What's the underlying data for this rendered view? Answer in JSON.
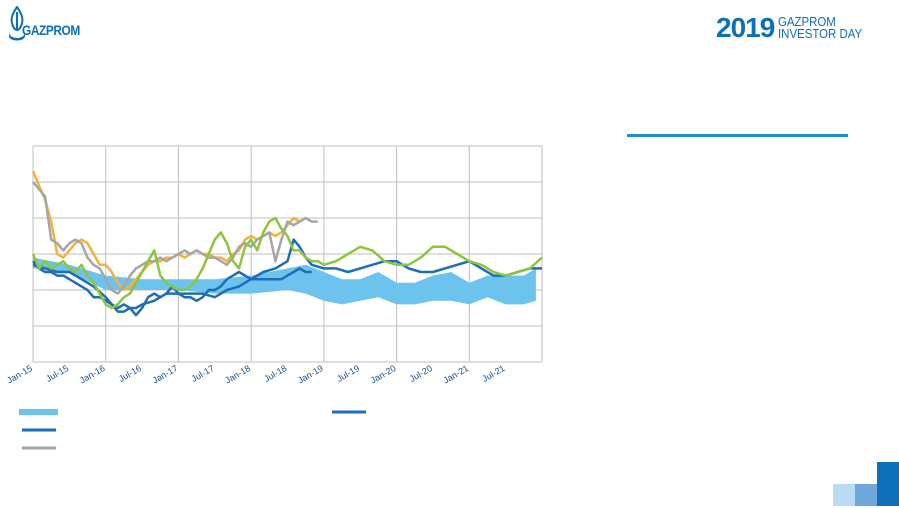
{
  "header": {
    "logo_text": "GAZPROM",
    "event_year": "2019",
    "event_line1": "GAZPROM",
    "event_line2": "INVESTOR DAY"
  },
  "colors": {
    "brand": "#0d6fb8",
    "band": "#6cc3ee",
    "accent_rule": "#1e8fd6",
    "series_orange": "#f2b33d",
    "series_grey": "#a6a6a6",
    "series_green": "#8cc63f",
    "series_dark_blue": "#1e6db8",
    "grid": "#bfbfbf"
  },
  "chart_data": {
    "type": "line",
    "title": "",
    "xlabel": "",
    "ylabel": "",
    "x_tick_labels": [
      "Jan-15",
      "Jul-15",
      "Jan-16",
      "Jul-16",
      "Jan-17",
      "Jul-17",
      "Jan-18",
      "Jul-18",
      "Jan-19",
      "Jul-19",
      "Jan-20",
      "Jul-20",
      "Jan-21",
      "Jul-21"
    ],
    "x_range_months": [
      0,
      84
    ],
    "y_range": [
      0,
      6
    ],
    "grid": true,
    "band": {
      "legend_marker": "band",
      "x": [
        0,
        6,
        12,
        18,
        24,
        30,
        36,
        42,
        45,
        48,
        51,
        54,
        57,
        60,
        63,
        66,
        69,
        72,
        75,
        78,
        81,
        83
      ],
      "low": [
        2.6,
        2.5,
        2.0,
        2.0,
        2.0,
        1.9,
        1.9,
        2.0,
        1.9,
        1.7,
        1.6,
        1.7,
        1.8,
        1.6,
        1.6,
        1.7,
        1.7,
        1.6,
        1.8,
        1.6,
        1.6,
        1.7
      ],
      "high": [
        2.9,
        2.7,
        2.4,
        2.3,
        2.3,
        2.3,
        2.4,
        2.6,
        2.7,
        2.5,
        2.3,
        2.3,
        2.5,
        2.2,
        2.2,
        2.4,
        2.5,
        2.2,
        2.4,
        2.4,
        2.4,
        2.6
      ]
    },
    "series": [
      {
        "legend_marker": "orange",
        "x": [
          0,
          1,
          2,
          3,
          4,
          5,
          6,
          7,
          8,
          9,
          10,
          11,
          12,
          13,
          14,
          15,
          16,
          17,
          18,
          19,
          20,
          21,
          22,
          23,
          24,
          25,
          26,
          27,
          28,
          29,
          30,
          31,
          32,
          33,
          34,
          35,
          36,
          37,
          38,
          39,
          40,
          41,
          42,
          43,
          44,
          45,
          46
        ],
        "y": [
          5.3,
          4.9,
          4.5,
          3.9,
          3.0,
          2.9,
          3.1,
          3.3,
          3.4,
          3.3,
          3.0,
          2.7,
          2.7,
          2.5,
          2.2,
          2.0,
          2.1,
          2.3,
          2.5,
          2.7,
          2.8,
          2.8,
          2.9,
          2.9,
          3.0,
          2.9,
          3.0,
          3.1,
          3.0,
          3.0,
          2.9,
          2.9,
          2.8,
          3.0,
          3.1,
          3.4,
          3.5,
          3.4,
          3.5,
          3.6,
          3.5,
          3.6,
          3.8,
          4.0,
          3.9,
          4.0,
          3.9
        ]
      },
      {
        "legend_marker": "grey",
        "x": [
          0,
          1,
          2,
          3,
          4,
          5,
          6,
          7,
          8,
          9,
          10,
          11,
          12,
          13,
          14,
          15,
          16,
          17,
          18,
          19,
          20,
          21,
          22,
          23,
          24,
          25,
          26,
          27,
          28,
          29,
          30,
          31,
          32,
          33,
          34,
          35,
          36,
          37,
          38,
          39,
          40,
          41,
          42,
          43,
          44,
          45,
          46,
          47
        ],
        "y": [
          5.0,
          4.8,
          4.6,
          3.4,
          3.3,
          3.1,
          3.3,
          3.4,
          3.3,
          2.9,
          2.7,
          2.6,
          2.3,
          2.0,
          1.9,
          2.1,
          2.4,
          2.6,
          2.7,
          2.8,
          2.8,
          2.9,
          2.8,
          2.9,
          3.0,
          3.1,
          3.0,
          3.1,
          3.0,
          2.9,
          2.9,
          2.8,
          2.7,
          2.9,
          3.2,
          3.3,
          3.2,
          3.4,
          3.5,
          3.6,
          2.8,
          3.4,
          3.9,
          3.8,
          3.9,
          4.0,
          3.9,
          3.9
        ]
      },
      {
        "legend_marker": "dark-blue",
        "x": [
          0,
          1,
          2,
          3,
          4,
          5,
          6,
          7,
          8,
          9,
          10,
          11,
          12,
          13,
          14,
          15,
          16,
          17,
          18,
          19,
          20,
          21,
          22,
          23,
          24,
          25,
          26,
          27,
          28,
          29,
          30,
          31,
          32,
          33,
          34,
          35,
          36,
          37,
          38,
          39,
          40,
          41,
          42,
          43,
          44,
          45,
          46
        ],
        "y": [
          2.8,
          2.6,
          2.5,
          2.5,
          2.4,
          2.4,
          2.3,
          2.2,
          2.1,
          2.0,
          1.8,
          1.8,
          1.7,
          1.6,
          1.5,
          1.6,
          1.5,
          1.3,
          1.5,
          1.8,
          1.9,
          1.8,
          1.9,
          2.1,
          1.9,
          1.8,
          1.8,
          1.7,
          1.8,
          2.0,
          2.0,
          2.1,
          2.3,
          2.4,
          2.5,
          2.4,
          2.3,
          2.3,
          2.3,
          2.3,
          2.3,
          2.3,
          2.4,
          2.5,
          2.6,
          2.5,
          2.5
        ]
      },
      {
        "legend_marker": "dark-blue-alt",
        "x": [
          0,
          2,
          4,
          6,
          8,
          10,
          12,
          13,
          14,
          15,
          16,
          17,
          18,
          20,
          22,
          24,
          26,
          28,
          30,
          32,
          34,
          36,
          38,
          40,
          42,
          43,
          44,
          45,
          46,
          48,
          50,
          52,
          54,
          56,
          58,
          60,
          62,
          64,
          66,
          68,
          70,
          72,
          74,
          76,
          78,
          80,
          82,
          84
        ],
        "y": [
          2.7,
          2.6,
          2.5,
          2.5,
          2.3,
          2.1,
          1.8,
          1.6,
          1.4,
          1.4,
          1.5,
          1.5,
          1.6,
          1.7,
          1.9,
          1.9,
          1.9,
          1.9,
          1.8,
          2.0,
          2.1,
          2.3,
          2.5,
          2.6,
          2.8,
          3.4,
          3.2,
          2.9,
          2.7,
          2.6,
          2.6,
          2.5,
          2.6,
          2.7,
          2.8,
          2.8,
          2.6,
          2.5,
          2.5,
          2.6,
          2.7,
          2.8,
          2.6,
          2.4,
          2.4,
          2.5,
          2.6,
          2.6
        ]
      },
      {
        "legend_marker": "green",
        "x": [
          0,
          1,
          2,
          3,
          4,
          5,
          6,
          7,
          8,
          9,
          10,
          11,
          12,
          13,
          14,
          15,
          16,
          17,
          18,
          19,
          20,
          21,
          22,
          23,
          24,
          25,
          26,
          27,
          28,
          29,
          30,
          31,
          32,
          33,
          34,
          35,
          36,
          37,
          38,
          39,
          40,
          41,
          42,
          43,
          44,
          45,
          46,
          47,
          48,
          50,
          52,
          54,
          56,
          58,
          60,
          62,
          64,
          66,
          68,
          70,
          72,
          74,
          76,
          78,
          80,
          82,
          84
        ],
        "y": [
          3.0,
          2.6,
          2.8,
          2.6,
          2.7,
          2.8,
          2.6,
          2.5,
          2.7,
          2.4,
          2.2,
          1.9,
          1.6,
          1.5,
          1.6,
          1.8,
          1.9,
          2.2,
          2.5,
          2.8,
          3.1,
          2.4,
          2.2,
          2.1,
          2.0,
          2.0,
          2.1,
          2.3,
          2.6,
          3.0,
          3.4,
          3.6,
          3.3,
          2.8,
          2.6,
          3.2,
          3.4,
          3.1,
          3.6,
          3.9,
          4.0,
          3.7,
          3.5,
          3.1,
          3.1,
          2.9,
          2.8,
          2.8,
          2.7,
          2.8,
          3.0,
          3.2,
          3.1,
          2.8,
          2.7,
          2.7,
          2.9,
          3.2,
          3.2,
          3.0,
          2.8,
          2.7,
          2.5,
          2.4,
          2.5,
          2.6,
          2.9
        ]
      }
    ]
  }
}
